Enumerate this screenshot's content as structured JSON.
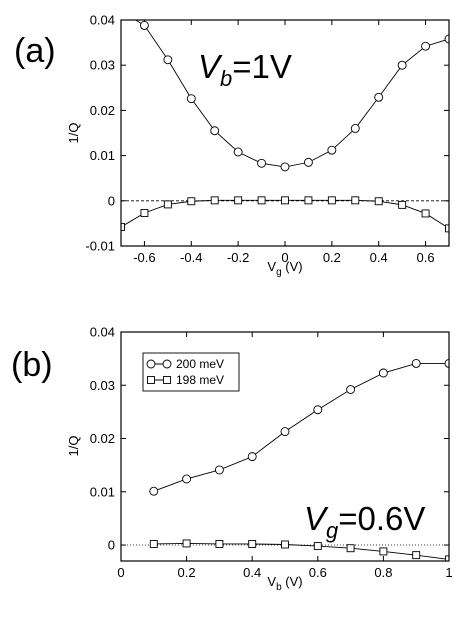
{
  "chart_data": [
    {
      "type": "line",
      "panel_label": "(a)",
      "annotation": {
        "var": "V",
        "sub": "b",
        "rest": "=1V"
      },
      "xlabel": {
        "main": "V",
        "sub": "g",
        "rest": " (V)"
      },
      "ylabel": "1/Q",
      "xlim": [
        -0.7,
        0.7
      ],
      "ylim": [
        -0.01,
        0.04
      ],
      "xticks": [
        "-0.6",
        "-0.4",
        "-0.2",
        "0",
        "0.2",
        "0.4",
        "0.6"
      ],
      "xtick_values": [
        -0.6,
        -0.4,
        -0.2,
        0,
        0.2,
        0.4,
        0.6
      ],
      "yticks": [
        "-0.01",
        "0",
        "0.01",
        "0.02",
        "0.03",
        "0.04"
      ],
      "ytick_values": [
        -0.01,
        0,
        0.01,
        0.02,
        0.03,
        0.04
      ],
      "zero_line": "dashed",
      "series": [
        {
          "marker": "circle",
          "x": [
            -0.7,
            -0.6,
            -0.5,
            -0.4,
            -0.3,
            -0.2,
            -0.1,
            0,
            0.1,
            0.2,
            0.3,
            0.4,
            0.5,
            0.6,
            0.7
          ],
          "y": [
            0.042,
            0.0388,
            0.0312,
            0.0226,
            0.0155,
            0.0108,
            0.0083,
            0.0075,
            0.0085,
            0.0112,
            0.016,
            0.0229,
            0.03,
            0.0342,
            0.0358
          ]
        },
        {
          "marker": "square",
          "x": [
            -0.7,
            -0.6,
            -0.5,
            -0.4,
            -0.3,
            -0.2,
            -0.1,
            0,
            0.1,
            0.2,
            0.3,
            0.4,
            0.5,
            0.6,
            0.7
          ],
          "y": [
            -0.0058,
            -0.0027,
            -0.0008,
            -0.0001,
            0.0001,
            0.0001,
            0.0001,
            0.0001,
            0.0001,
            0.0001,
            0.0001,
            -0.0001,
            -0.0009,
            -0.0028,
            -0.0061
          ]
        }
      ]
    },
    {
      "type": "line",
      "panel_label": "(b)",
      "annotation": {
        "var": "V",
        "sub": "g",
        "rest": "=0.6V"
      },
      "xlabel": {
        "main": "V",
        "sub": "b",
        "rest": " (V)"
      },
      "ylabel": "1/Q",
      "xlim": [
        0,
        1
      ],
      "ylim": [
        -0.003,
        0.04
      ],
      "xticks": [
        "0",
        "0.2",
        "0.4",
        "0.6",
        "0.8",
        "1"
      ],
      "xtick_values": [
        0,
        0.2,
        0.4,
        0.6,
        0.8,
        1
      ],
      "yticks": [
        "0",
        "0.01",
        "0.02",
        "0.03",
        "0.04"
      ],
      "ytick_values": [
        0,
        0.01,
        0.02,
        0.03,
        0.04
      ],
      "zero_line": "dotted",
      "legend_position": "top-left",
      "series": [
        {
          "name": "200 meV",
          "marker": "circle",
          "x": [
            0.1,
            0.2,
            0.3,
            0.4,
            0.5,
            0.6,
            0.7,
            0.8,
            0.9,
            1.0
          ],
          "y": [
            0.0101,
            0.0124,
            0.0141,
            0.0166,
            0.0213,
            0.0254,
            0.0292,
            0.0323,
            0.0341,
            0.0341
          ]
        },
        {
          "name": "198 meV",
          "marker": "square",
          "x": [
            0.1,
            0.2,
            0.3,
            0.4,
            0.5,
            0.6,
            0.7,
            0.8,
            0.9,
            1.0
          ],
          "y": [
            0.0002,
            0.0003,
            0.0002,
            0.0002,
            0.0001,
            -0.0002,
            -0.0006,
            -0.0012,
            -0.0019,
            -0.0027
          ]
        }
      ]
    }
  ]
}
